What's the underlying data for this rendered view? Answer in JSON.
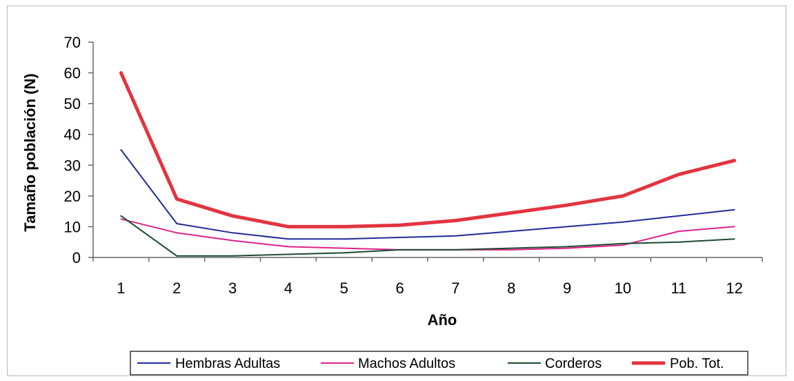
{
  "chart_data": {
    "type": "line",
    "title": "",
    "xlabel": "Año",
    "ylabel": "Tamaño población (N)",
    "x": [
      1,
      2,
      3,
      4,
      5,
      6,
      7,
      8,
      9,
      10,
      11,
      12
    ],
    "ylim": [
      0,
      70
    ],
    "yticks": [
      0,
      10,
      20,
      30,
      40,
      50,
      60,
      70
    ],
    "grid": false,
    "legend_position": "bottom",
    "series": [
      {
        "name": "Hembras Adultas",
        "color": "#1f2a9a",
        "values": [
          35,
          11,
          8,
          6,
          6,
          6.5,
          7,
          8.5,
          10,
          11.5,
          13.5,
          15.5
        ]
      },
      {
        "name": "Machos Adultos",
        "color": "#e0208c",
        "values": [
          12.5,
          8,
          5.5,
          3.5,
          3,
          2.5,
          2.5,
          2.5,
          3,
          4,
          8.5,
          10
        ]
      },
      {
        "name": "Corderos",
        "color": "#1b4a2e",
        "values": [
          13.5,
          0.5,
          0.5,
          1,
          1.5,
          2.5,
          2.5,
          3,
          3.5,
          4.5,
          5,
          6
        ]
      },
      {
        "name": "Pob. Tot.",
        "color": "#e3343f",
        "values": [
          60,
          19,
          13.5,
          10,
          10,
          10.5,
          12,
          14.5,
          17,
          20,
          27,
          31.5
        ]
      }
    ]
  }
}
